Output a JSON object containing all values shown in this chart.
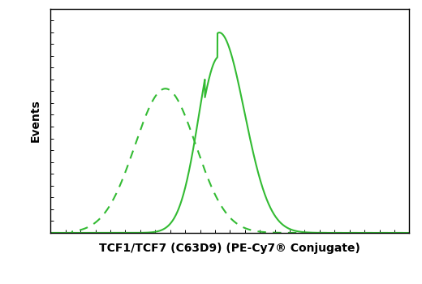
{
  "title": "",
  "xlabel": "TCF1/TCF7 (C63D9) (PE-Cy7® Conjugate)",
  "ylabel": "Events",
  "line_color": "#33bb33",
  "background_color": "#ffffff",
  "plot_bg_color": "#ffffff",
  "xlabel_fontsize": 10,
  "ylabel_fontsize": 10,
  "linewidth": 1.5,
  "figsize": [
    5.2,
    3.5
  ],
  "dpi": 100
}
